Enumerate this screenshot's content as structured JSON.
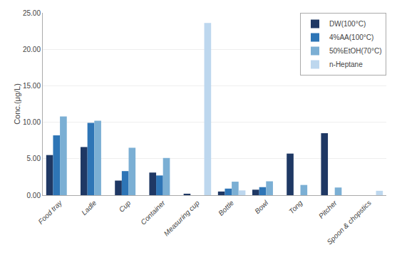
{
  "chart_data": {
    "type": "bar",
    "categories": [
      "Food tray",
      "Ladle",
      "Cup",
      "Container",
      "Measuring cup",
      "Bottle",
      "Bowl",
      "Tong",
      "Pitcher",
      "Spoon & chopstics"
    ],
    "series": [
      {
        "name": "DW(100°C)",
        "color": "#1f3864",
        "values": [
          5.5,
          6.6,
          2.0,
          3.1,
          0.2,
          0.5,
          0.75,
          5.7,
          8.5,
          0.0
        ]
      },
      {
        "name": "4%AA(100°C)",
        "color": "#2e75b6",
        "values": [
          8.2,
          9.9,
          3.3,
          2.7,
          0.0,
          0.9,
          1.1,
          0.0,
          0.0,
          0.0
        ]
      },
      {
        "name": "50%EtOH(70°C)",
        "color": "#7bafd4",
        "values": [
          10.8,
          10.2,
          6.5,
          5.1,
          0.0,
          1.85,
          1.9,
          1.4,
          1.05,
          0.0
        ]
      },
      {
        "name": "n-Heptane",
        "color": "#bdd7ee",
        "values": [
          0.0,
          0.0,
          0.0,
          0.0,
          23.6,
          0.65,
          0.0,
          0.0,
          0.0,
          0.6
        ]
      }
    ],
    "ylabel": "Conc.(μg/L)",
    "ylim": [
      0,
      25.0
    ],
    "yticks": [
      {
        "value": 0,
        "label": "0.00"
      },
      {
        "value": 5,
        "label": "5.00"
      },
      {
        "value": 10,
        "label": "10.00"
      },
      {
        "value": 15,
        "label": "15.00"
      },
      {
        "value": 20,
        "label": "20.00"
      },
      {
        "value": 25,
        "label": "25.00"
      }
    ],
    "grid": true,
    "legend": "upper right"
  }
}
